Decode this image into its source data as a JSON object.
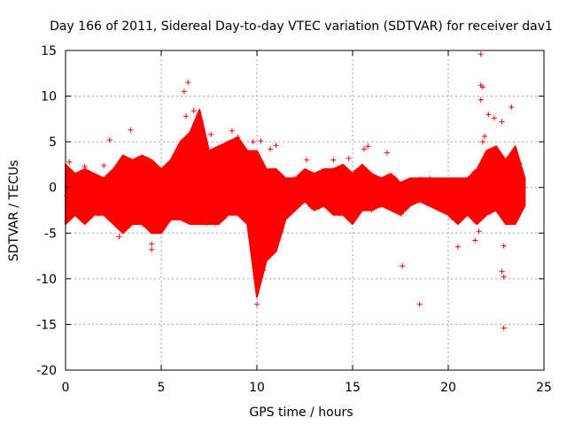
{
  "chart_data": {
    "type": "scatter",
    "title": "Day 166 of 2011, Sidereal Day-to-day VTEC variation (SDTVAR) for receiver dav1",
    "xlabel": "GPS time / hours",
    "ylabel": "SDTVAR / TECUs",
    "xlim": [
      0,
      25
    ],
    "ylim": [
      -20,
      15
    ],
    "xticks": [
      0,
      5,
      10,
      15,
      20,
      25
    ],
    "yticks": [
      -20,
      -15,
      -10,
      -5,
      0,
      5,
      10,
      15
    ],
    "grid": true,
    "marker": "+",
    "color": "#ff0000",
    "band": {
      "x": [
        0,
        0.5,
        1,
        1.5,
        2,
        2.5,
        3,
        3.5,
        4,
        4.5,
        5,
        5.5,
        6,
        6.5,
        7,
        7.5,
        8,
        8.5,
        9,
        9.5,
        10,
        10.5,
        11,
        11.5,
        12,
        12.5,
        13,
        13.5,
        14,
        14.5,
        15,
        15.5,
        16,
        16.5,
        17,
        17.5,
        18,
        18.5,
        19,
        19.5,
        20,
        20.5,
        21,
        21.5,
        22,
        22.5,
        23,
        23.5,
        24
      ],
      "upper": [
        2.5,
        1.5,
        2,
        1.5,
        1,
        2,
        3.5,
        3,
        3.5,
        3,
        2,
        3,
        5,
        6,
        8.5,
        4,
        4.5,
        5,
        5.5,
        4,
        4,
        2,
        2,
        1,
        1,
        2,
        1.5,
        2,
        2,
        2.5,
        1.5,
        2.5,
        1.5,
        1,
        1.5,
        0.5,
        1,
        1,
        1,
        1,
        1,
        1,
        1,
        2,
        4,
        4.5,
        3,
        4.5,
        1
      ],
      "lower": [
        -4,
        -3,
        -4,
        -3,
        -3,
        -4,
        -5,
        -4,
        -4,
        -5,
        -5,
        -3.5,
        -3.5,
        -4,
        -4,
        -4,
        -4,
        -3,
        -3,
        -4,
        -12,
        -8,
        -7,
        -3.5,
        -2.5,
        -1.5,
        -2.5,
        -2,
        -3,
        -3,
        -4,
        -2.5,
        -2.5,
        -2,
        -2.5,
        -3,
        -2,
        -1.5,
        -2,
        -2.5,
        -3,
        -4,
        -3,
        -4,
        -3,
        -2.5,
        -4,
        -4,
        -2
      ]
    },
    "outliers": [
      {
        "x": 2.3,
        "y": 5.2
      },
      {
        "x": 3.4,
        "y": 6.3
      },
      {
        "x": 2.8,
        "y": -5.4
      },
      {
        "x": 4.5,
        "y": -6.8
      },
      {
        "x": 4.5,
        "y": -6.2
      },
      {
        "x": 6.2,
        "y": 10.5
      },
      {
        "x": 6.4,
        "y": 11.5
      },
      {
        "x": 6.3,
        "y": 7.8
      },
      {
        "x": 6.7,
        "y": 8.4
      },
      {
        "x": 10.0,
        "y": -12.8
      },
      {
        "x": 9.8,
        "y": 5.0
      },
      {
        "x": 10.2,
        "y": 5.1
      },
      {
        "x": 11.0,
        "y": 4.6
      },
      {
        "x": 10.7,
        "y": 4.2
      },
      {
        "x": 12.6,
        "y": 3.0
      },
      {
        "x": 14.0,
        "y": 3.0
      },
      {
        "x": 14.8,
        "y": 3.2
      },
      {
        "x": 15.6,
        "y": 4.2
      },
      {
        "x": 15.8,
        "y": 4.5
      },
      {
        "x": 16.8,
        "y": 3.8
      },
      {
        "x": 17.6,
        "y": -8.6
      },
      {
        "x": 18.5,
        "y": -12.8
      },
      {
        "x": 20.5,
        "y": -6.5
      },
      {
        "x": 21.4,
        "y": -5.8
      },
      {
        "x": 21.7,
        "y": 14.6
      },
      {
        "x": 21.7,
        "y": 11.2
      },
      {
        "x": 21.8,
        "y": 11.0
      },
      {
        "x": 21.7,
        "y": 9.6
      },
      {
        "x": 22.1,
        "y": 8.0
      },
      {
        "x": 22.4,
        "y": 7.6
      },
      {
        "x": 22.8,
        "y": 7.2
      },
      {
        "x": 23.3,
        "y": 8.8
      },
      {
        "x": 22.8,
        "y": -9.2
      },
      {
        "x": 22.9,
        "y": -9.8
      },
      {
        "x": 22.9,
        "y": -15.4
      },
      {
        "x": 22.9,
        "y": -6.4
      },
      {
        "x": 21.6,
        "y": -4.8
      },
      {
        "x": 21.9,
        "y": 5.6
      },
      {
        "x": 21.8,
        "y": 5.0
      },
      {
        "x": 2.0,
        "y": 2.4
      },
      {
        "x": 1.0,
        "y": 2.3
      },
      {
        "x": 0.2,
        "y": 2.8
      },
      {
        "x": 8.7,
        "y": 6.2
      },
      {
        "x": 7.6,
        "y": 5.8
      },
      {
        "x": 9.0,
        "y": 5.5
      }
    ]
  }
}
